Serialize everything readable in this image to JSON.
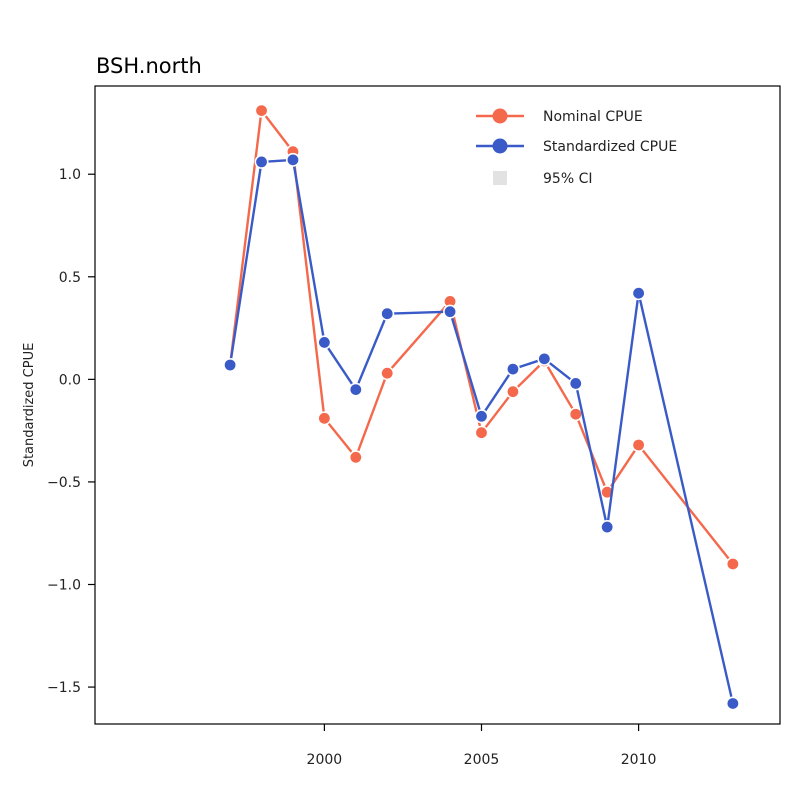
{
  "chart_data": {
    "type": "line",
    "title": "BSH.north",
    "xlabel": "",
    "ylabel": "Standardized CPUE",
    "x": [
      1997,
      1998,
      1999,
      2000,
      2001,
      2002,
      2004,
      2005,
      2006,
      2007,
      2008,
      2009,
      2010,
      2013
    ],
    "xlim": [
      1992.7,
      2014.5
    ],
    "ylim": [
      -1.68,
      1.43
    ],
    "xticks": [
      2000,
      2005,
      2010
    ],
    "yticks": [
      -1.5,
      -1.0,
      -0.5,
      0.0,
      0.5,
      1.0
    ],
    "ytick_labels": [
      "−1.5",
      "−1.0",
      "−0.5",
      "0.0",
      "0.5",
      "1.0"
    ],
    "grid": false,
    "legend_position": "top-right",
    "series": [
      {
        "name": "Nominal CPUE",
        "color": "#F4694C",
        "values": [
          0.07,
          1.31,
          1.11,
          -0.19,
          -0.38,
          0.03,
          0.38,
          -0.26,
          -0.06,
          0.09,
          -0.17,
          -0.55,
          -0.32,
          -0.9
        ]
      },
      {
        "name": "Standardized CPUE",
        "color": "#3A5BC7",
        "values": [
          0.07,
          1.06,
          1.07,
          0.18,
          -0.05,
          0.32,
          0.33,
          -0.18,
          0.05,
          0.1,
          -0.02,
          -0.72,
          0.42,
          -1.58
        ]
      }
    ],
    "legend": {
      "entries": [
        "Nominal CPUE",
        "Standardized CPUE",
        "95% CI"
      ],
      "ci_color": "#E2E2E2"
    }
  }
}
